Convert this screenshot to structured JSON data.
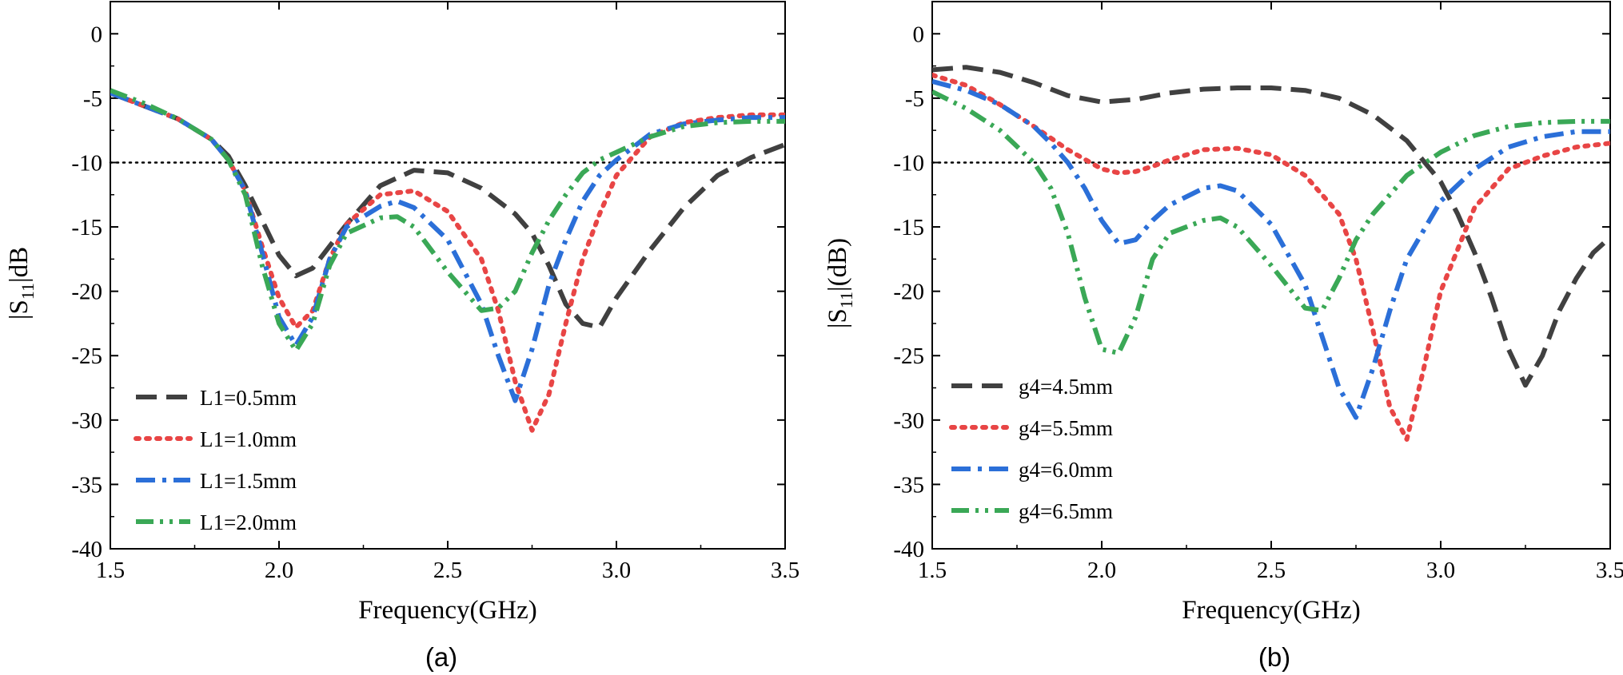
{
  "chart_data": [
    {
      "type": "line",
      "panel": "a",
      "caption": "(a)",
      "xlabel": "Frequency(GHz)",
      "ylabel": "|S11|dB",
      "ylabel_prefix": "|S",
      "ylabel_sub": "11",
      "ylabel_suffix": "|dB",
      "xlim": [
        1.5,
        3.5
      ],
      "ylim": [
        -40,
        2.5
      ],
      "xticks": [
        1.5,
        2.0,
        2.5,
        3.0,
        3.5
      ],
      "xtick_labels": [
        "1.5",
        "2.0",
        "2.5",
        "3.0",
        "3.5"
      ],
      "yticks": [
        0,
        -5,
        -10,
        -15,
        -20,
        -25,
        -30,
        -35,
        -40
      ],
      "ytick_labels": [
        "0",
        "-5",
        "-10",
        "-15",
        "-20",
        "-25",
        "-30",
        "-35",
        "-40"
      ],
      "reference_line": -10,
      "legend_position": "bottom-left",
      "series": [
        {
          "name": "L1=0.5mm",
          "color": "#404040",
          "style": "dash",
          "x": [
            1.5,
            1.6,
            1.7,
            1.8,
            1.85,
            1.9,
            1.95,
            2.0,
            2.05,
            2.1,
            2.15,
            2.2,
            2.3,
            2.4,
            2.5,
            2.6,
            2.7,
            2.75,
            2.8,
            2.85,
            2.9,
            2.95,
            3.0,
            3.1,
            3.2,
            3.3,
            3.4,
            3.5
          ],
          "y": [
            -4.6,
            -5.6,
            -6.6,
            -8.2,
            -9.5,
            -11.8,
            -14.5,
            -17.2,
            -18.8,
            -18.2,
            -16.5,
            -14.8,
            -11.8,
            -10.6,
            -10.8,
            -12.0,
            -14.0,
            -15.5,
            -18.0,
            -21.0,
            -22.5,
            -22.8,
            -20.5,
            -16.8,
            -13.5,
            -11.0,
            -9.6,
            -8.6
          ]
        },
        {
          "name": "L1=1.0mm",
          "color": "#e84545",
          "style": "dot",
          "x": [
            1.5,
            1.6,
            1.7,
            1.8,
            1.85,
            1.9,
            1.95,
            2.0,
            2.05,
            2.1,
            2.15,
            2.2,
            2.3,
            2.4,
            2.5,
            2.6,
            2.65,
            2.7,
            2.75,
            2.8,
            2.85,
            2.9,
            2.95,
            3.0,
            3.1,
            3.2,
            3.3,
            3.4,
            3.5
          ],
          "y": [
            -4.6,
            -5.6,
            -6.6,
            -8.2,
            -9.8,
            -12.2,
            -16.5,
            -20.5,
            -22.8,
            -21.5,
            -17.5,
            -14.8,
            -12.5,
            -12.2,
            -13.8,
            -17.5,
            -21.5,
            -27.0,
            -30.8,
            -28.0,
            -22.5,
            -17.5,
            -14.0,
            -11.0,
            -8.0,
            -6.9,
            -6.5,
            -6.3,
            -6.3
          ]
        },
        {
          "name": "L1=1.5mm",
          "color": "#2b6fd8",
          "style": "dashdot",
          "x": [
            1.5,
            1.6,
            1.7,
            1.8,
            1.85,
            1.9,
            1.95,
            2.0,
            2.05,
            2.1,
            2.15,
            2.2,
            2.3,
            2.35,
            2.4,
            2.5,
            2.6,
            2.65,
            2.7,
            2.75,
            2.8,
            2.85,
            2.9,
            2.95,
            3.0,
            3.1,
            3.2,
            3.3,
            3.4,
            3.5
          ],
          "y": [
            -4.6,
            -5.6,
            -6.6,
            -8.2,
            -9.8,
            -12.2,
            -17.0,
            -22.0,
            -24.2,
            -22.0,
            -17.5,
            -15.0,
            -13.4,
            -13.0,
            -13.5,
            -16.0,
            -21.0,
            -25.0,
            -28.5,
            -24.5,
            -19.5,
            -16.0,
            -13.0,
            -11.0,
            -9.8,
            -7.8,
            -7.0,
            -6.7,
            -6.5,
            -6.5
          ]
        },
        {
          "name": "L1=2.0mm",
          "color": "#3aa856",
          "style": "dashdotdot",
          "x": [
            1.5,
            1.6,
            1.7,
            1.8,
            1.85,
            1.9,
            1.95,
            2.0,
            2.05,
            2.1,
            2.15,
            2.2,
            2.3,
            2.35,
            2.4,
            2.5,
            2.6,
            2.65,
            2.7,
            2.75,
            2.8,
            2.85,
            2.9,
            2.95,
            3.0,
            3.1,
            3.2,
            3.3,
            3.4,
            3.5
          ],
          "y": [
            -4.4,
            -5.4,
            -6.6,
            -8.2,
            -9.8,
            -12.5,
            -18.0,
            -22.5,
            -24.6,
            -22.5,
            -18.0,
            -15.5,
            -14.3,
            -14.2,
            -15.0,
            -18.5,
            -21.5,
            -21.3,
            -20.0,
            -17.0,
            -14.5,
            -12.5,
            -10.8,
            -9.8,
            -9.2,
            -8.0,
            -7.2,
            -6.9,
            -6.8,
            -6.8
          ]
        }
      ]
    },
    {
      "type": "line",
      "panel": "b",
      "caption": "(b)",
      "xlabel": "Frequency(GHz)",
      "ylabel": "|S11|(dB)",
      "ylabel_prefix": "|S",
      "ylabel_sub": "11",
      "ylabel_suffix": "|(dB)",
      "xlim": [
        1.5,
        3.5
      ],
      "ylim": [
        -40,
        2.5
      ],
      "xticks": [
        1.5,
        2.0,
        2.5,
        3.0,
        3.5
      ],
      "xtick_labels": [
        "1.5",
        "2.0",
        "2.5",
        "3.0",
        "3.5"
      ],
      "yticks": [
        0,
        -5,
        -10,
        -15,
        -20,
        -25,
        -30,
        -35,
        -40
      ],
      "ytick_labels": [
        "0",
        "-5",
        "-10",
        "-15",
        "-20",
        "-25",
        "-30",
        "-35",
        "-40"
      ],
      "reference_line": -10,
      "legend_position": "bottom-left",
      "series": [
        {
          "name": "g4=4.5mm",
          "color": "#404040",
          "style": "dash",
          "x": [
            1.5,
            1.6,
            1.7,
            1.8,
            1.9,
            2.0,
            2.1,
            2.2,
            2.3,
            2.4,
            2.5,
            2.6,
            2.7,
            2.8,
            2.9,
            2.95,
            3.0,
            3.05,
            3.1,
            3.15,
            3.2,
            3.25,
            3.3,
            3.35,
            3.4,
            3.45,
            3.5
          ],
          "y": [
            -2.8,
            -2.6,
            -3.0,
            -3.8,
            -4.8,
            -5.3,
            -5.1,
            -4.6,
            -4.3,
            -4.2,
            -4.2,
            -4.4,
            -5.0,
            -6.3,
            -8.3,
            -9.9,
            -11.5,
            -14.0,
            -17.0,
            -20.5,
            -24.5,
            -27.3,
            -25.0,
            -21.5,
            -19.0,
            -17.0,
            -15.8
          ]
        },
        {
          "name": "g4=5.5mm",
          "color": "#e84545",
          "style": "dot",
          "x": [
            1.5,
            1.6,
            1.7,
            1.8,
            1.9,
            2.0,
            2.05,
            2.1,
            2.15,
            2.2,
            2.3,
            2.4,
            2.5,
            2.6,
            2.7,
            2.75,
            2.8,
            2.85,
            2.9,
            2.95,
            3.0,
            3.1,
            3.2,
            3.3,
            3.4,
            3.5
          ],
          "y": [
            -3.2,
            -4.0,
            -5.5,
            -7.2,
            -9.0,
            -10.5,
            -10.8,
            -10.7,
            -10.3,
            -9.8,
            -9.0,
            -8.9,
            -9.4,
            -11.0,
            -14.0,
            -17.5,
            -23.0,
            -29.0,
            -31.5,
            -26.0,
            -20.0,
            -13.5,
            -10.5,
            -9.5,
            -8.8,
            -8.5
          ]
        },
        {
          "name": "g4=6.0mm",
          "color": "#2b6fd8",
          "style": "dashdot",
          "x": [
            1.5,
            1.6,
            1.7,
            1.8,
            1.85,
            1.9,
            1.95,
            2.0,
            2.05,
            2.1,
            2.15,
            2.2,
            2.3,
            2.35,
            2.4,
            2.5,
            2.6,
            2.65,
            2.7,
            2.75,
            2.8,
            2.85,
            2.9,
            3.0,
            3.1,
            3.2,
            3.3,
            3.4,
            3.5
          ],
          "y": [
            -3.7,
            -4.4,
            -5.5,
            -7.2,
            -8.5,
            -10.0,
            -12.0,
            -14.5,
            -16.3,
            -16.0,
            -14.5,
            -13.3,
            -12.0,
            -11.8,
            -12.2,
            -14.8,
            -19.5,
            -23.5,
            -27.5,
            -29.8,
            -26.0,
            -21.5,
            -17.5,
            -13.0,
            -10.5,
            -8.8,
            -8.0,
            -7.6,
            -7.6
          ]
        },
        {
          "name": "g4=6.5mm",
          "color": "#3aa856",
          "style": "dashdotdot",
          "x": [
            1.5,
            1.6,
            1.7,
            1.8,
            1.85,
            1.9,
            1.95,
            2.0,
            2.05,
            2.1,
            2.15,
            2.2,
            2.3,
            2.35,
            2.4,
            2.5,
            2.6,
            2.65,
            2.7,
            2.75,
            2.8,
            2.9,
            3.0,
            3.1,
            3.2,
            3.3,
            3.4,
            3.5
          ],
          "y": [
            -4.5,
            -5.8,
            -7.5,
            -10.0,
            -12.0,
            -15.5,
            -20.5,
            -24.5,
            -24.8,
            -22.0,
            -17.5,
            -15.5,
            -14.5,
            -14.3,
            -15.0,
            -18.0,
            -21.3,
            -21.5,
            -19.0,
            -16.0,
            -14.0,
            -11.0,
            -9.2,
            -7.9,
            -7.2,
            -6.9,
            -6.8,
            -6.8
          ]
        }
      ]
    }
  ]
}
